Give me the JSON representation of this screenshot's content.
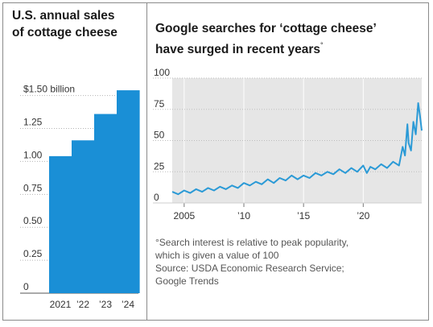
{
  "left_panel": {
    "title_line1": "U.S. annual sales",
    "title_line2": "of cottage cheese"
  },
  "right_panel": {
    "title_line1": "Google searches for ‘cottage cheese’",
    "title_line2": "have surged in recent years",
    "title_mark": "°",
    "note_line1": "°Search interest is relative to peak popularity,",
    "note_line2": "which is given a value of 100",
    "source_line1": "Source: USDA Economic Research Service;",
    "source_line2": "Google Trends"
  },
  "colors": {
    "bar": "#1a8fd6",
    "line": "#2b9ad6",
    "plot_bg": "#e6e6e6",
    "grid": "#ffffff"
  },
  "chart_data": [
    {
      "type": "bar",
      "title": "U.S. annual sales of cottage cheese",
      "categories": [
        "2021",
        "’22",
        "’23",
        "’24"
      ],
      "values": [
        1.04,
        1.16,
        1.36,
        1.54
      ],
      "ylim": [
        0,
        1.62
      ],
      "yticks": [
        0,
        0.25,
        0.5,
        0.75,
        1.0,
        1.25,
        1.5
      ],
      "ytick_labels": [
        "0",
        "0.25",
        "0.50",
        "0.75",
        "1.00",
        "1.25",
        "$1.50 billion"
      ],
      "grid": true
    },
    {
      "type": "line",
      "title": "Google searches for ‘cottage cheese’ have surged in recent years",
      "xlim": [
        2004,
        2024.9
      ],
      "ylim": [
        0,
        100
      ],
      "yticks": [
        0,
        25,
        50,
        75,
        100
      ],
      "ytick_labels": [
        "0",
        "25",
        "50",
        "75",
        "100"
      ],
      "xticks": [
        2005,
        2010,
        2015,
        2020
      ],
      "xtick_labels": [
        "2005",
        "’10",
        "’15",
        "’20"
      ],
      "grid": true,
      "series": [
        {
          "x": [
            2004.0,
            2004.5,
            2005.0,
            2005.5,
            2006.0,
            2006.5,
            2007.0,
            2007.5,
            2008.0,
            2008.5,
            2009.0,
            2009.5,
            2010.0,
            2010.5,
            2011.0,
            2011.5,
            2012.0,
            2012.5,
            2013.0,
            2013.5,
            2014.0,
            2014.5,
            2015.0,
            2015.5,
            2016.0,
            2016.5,
            2017.0,
            2017.5,
            2018.0,
            2018.5,
            2019.0,
            2019.5,
            2020.0,
            2020.3,
            2020.6,
            2021.0,
            2021.5,
            2022.0,
            2022.5,
            2023.0,
            2023.3,
            2023.5,
            2023.7,
            2023.8,
            2024.0,
            2024.2,
            2024.4,
            2024.6,
            2024.75,
            2024.9
          ],
          "y": [
            9,
            7,
            10,
            8,
            11,
            9,
            12,
            10,
            13,
            11,
            14,
            12,
            16,
            14,
            17,
            15,
            19,
            16,
            20,
            18,
            22,
            19,
            22,
            20,
            24,
            22,
            25,
            23,
            27,
            24,
            28,
            25,
            30,
            24,
            29,
            27,
            31,
            28,
            33,
            30,
            45,
            38,
            63,
            48,
            42,
            65,
            55,
            80,
            70,
            58
          ]
        }
      ]
    }
  ]
}
